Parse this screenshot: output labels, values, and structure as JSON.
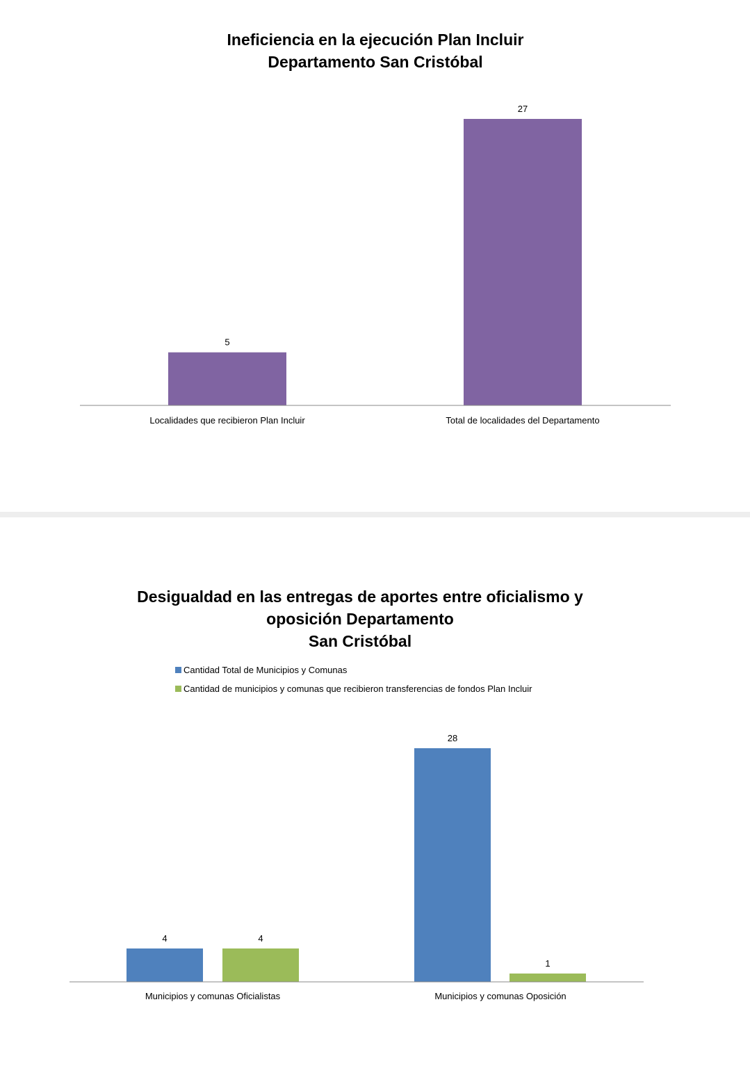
{
  "chart_data": [
    {
      "type": "bar",
      "title": [
        "Ineficiencia en la ejecución Plan Incluir",
        "Departamento San Cristóbal"
      ],
      "categories": [
        "Localidades que recibieron Plan Incluir",
        "Total de localidades del Departamento"
      ],
      "values": [
        5,
        27
      ],
      "data_labels": [
        "5",
        "27"
      ],
      "color": "#8064A2",
      "xlabel": "",
      "ylabel": "",
      "ylim": [
        0,
        27
      ],
      "grid": false,
      "legend": "none"
    },
    {
      "type": "bar",
      "title": [
        "Desigualdad en las entregas de aportes entre oficialismo y",
        "oposición Departamento",
        "San Cristóbal"
      ],
      "categories": [
        "Municipios y comunas Oficialistas",
        "Municipios y comunas Oposición"
      ],
      "series": [
        {
          "name": "Cantidad Total de Municipios y Comunas",
          "values": [
            4,
            28
          ],
          "data_labels": [
            "4",
            "28"
          ],
          "color": "#4F81BD"
        },
        {
          "name": "Cantidad de municipios y comunas que recibieron transferencias de fondos Plan Incluir",
          "values": [
            4,
            1
          ],
          "data_labels": [
            "4",
            "1"
          ],
          "color": "#9BBB59"
        }
      ],
      "xlabel": "",
      "ylabel": "",
      "ylim": [
        0,
        28
      ],
      "grid": false,
      "legend": "top-left"
    }
  ]
}
